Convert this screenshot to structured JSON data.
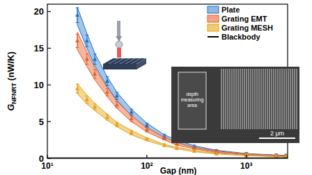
{
  "chart_data": {
    "type": "scatter",
    "log": "x",
    "x_label": "Gap (nm)",
    "y_label": "G",
    "y_label_sub": "NFNRT",
    "y_label_unit": "(nW/K)",
    "xlim": [
      10,
      2600
    ],
    "ylim": [
      0,
      21
    ],
    "xticks": [
      {
        "value": 10,
        "label": "10¹"
      },
      {
        "value": 100,
        "label": "10²"
      },
      {
        "value": 1000,
        "label": "10³"
      }
    ],
    "yticks": [
      0,
      5,
      10,
      15,
      20
    ],
    "grid": false,
    "legend": "upper right",
    "x": [
      20,
      25,
      30,
      40,
      50,
      70,
      100,
      150,
      200,
      300,
      500,
      1000,
      2000,
      2500
    ],
    "series": [
      {
        "name": "Plate",
        "color": "#1f6fc0",
        "marker": "triangle",
        "values": [
          19.5,
          16,
          13.5,
          10.5,
          8.5,
          6.3,
          4.5,
          3,
          2.3,
          1.6,
          1.0,
          0.6,
          0.4,
          0.35
        ],
        "errors": [
          1,
          0.8,
          0.7,
          0.6,
          0.5,
          0.4,
          0.3,
          0.3,
          0.2,
          0.2,
          0.2,
          0.2,
          0.2,
          0.2
        ],
        "band_lower": [
          18.2,
          15,
          12.6,
          9.8,
          7.9,
          5.8,
          4.1,
          2.7,
          2.1,
          1.4,
          0.9,
          0.5,
          0.35,
          0.3
        ],
        "band_upper": [
          20.6,
          17,
          14.3,
          11.1,
          9,
          6.7,
          4.8,
          3.2,
          2.5,
          1.7,
          1.1,
          0.65,
          0.45,
          0.4
        ]
      },
      {
        "name": "Grating EMT",
        "color": "#e0602f",
        "marker": "triangle",
        "values": [
          16,
          13.5,
          11.5,
          9,
          7.3,
          5.4,
          3.9,
          2.7,
          2.0,
          1.4,
          0.9,
          0.55,
          0.35,
          0.3
        ],
        "errors": [
          0.9,
          0.7,
          0.6,
          0.5,
          0.4,
          0.4,
          0.3,
          0.2,
          0.2,
          0.2,
          0.2,
          0.2,
          0.2,
          0.2
        ],
        "band_lower": [
          14.8,
          12.5,
          10.7,
          8.4,
          6.8,
          5,
          3.6,
          2.5,
          1.8,
          1.3,
          0.8,
          0.5,
          0.3,
          0.27
        ],
        "band_upper": [
          17.2,
          14.5,
          12.3,
          9.6,
          7.8,
          5.8,
          4.2,
          2.9,
          2.2,
          1.5,
          1,
          0.6,
          0.4,
          0.33
        ]
      },
      {
        "name": "Grating MESH",
        "color": "#e3a020",
        "marker": "triangle",
        "values": [
          9.5,
          8,
          7,
          5.6,
          4.6,
          3.5,
          2.6,
          1.8,
          1.4,
          1,
          0.65,
          0.4,
          0.25,
          0.22
        ],
        "errors": [
          0.6,
          0.5,
          0.4,
          0.4,
          0.3,
          0.3,
          0.2,
          0.2,
          0.2,
          0.2,
          0.2,
          0.2,
          0.2,
          0.2
        ],
        "band_lower": [
          8.8,
          7.4,
          6.5,
          5.2,
          4.3,
          3.2,
          2.4,
          1.7,
          1.3,
          0.9,
          0.6,
          0.36,
          0.22,
          0.2
        ],
        "band_upper": [
          10.2,
          8.6,
          7.5,
          6,
          4.9,
          3.8,
          2.8,
          1.9,
          1.5,
          1.1,
          0.7,
          0.44,
          0.28,
          0.24
        ]
      },
      {
        "name": "Blackbody",
        "color": "#000000",
        "type": "line",
        "line_style": "solid",
        "x": [
          10,
          2600
        ],
        "values": [
          0.05,
          0.05
        ]
      }
    ],
    "inset_sem": {
      "area_label": [
        "depth",
        "measuring",
        "area"
      ],
      "scale_bar": "2 μm"
    }
  }
}
